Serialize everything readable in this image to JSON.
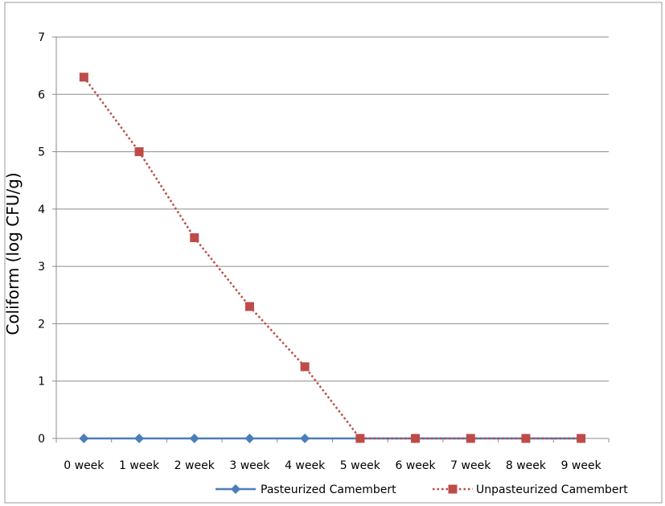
{
  "chart_data": {
    "type": "line",
    "title": "",
    "xlabel": "",
    "ylabel": "Coliform  (log CFU/g)",
    "categories": [
      "0 week",
      "1 week",
      "2 week",
      "3 week",
      "4 week",
      "5 week",
      "6 week",
      "7 week",
      "8 week",
      "9 week"
    ],
    "ylim": [
      0,
      7
    ],
    "yticks": [
      "0",
      "1",
      "2",
      "3",
      "4",
      "5",
      "6",
      "7"
    ],
    "grid": "horizontal",
    "legend_position": "bottom",
    "series": [
      {
        "name": "Pasteurized Camembert",
        "color": "#4a7ebb",
        "marker": "diamond",
        "line_style": "solid",
        "values": [
          0,
          0,
          0,
          0,
          0,
          0,
          0,
          0,
          0,
          0
        ]
      },
      {
        "name": "Unpasteurized Camembert",
        "color": "#be4b48",
        "marker": "square",
        "line_style": "dotted",
        "values": [
          6.3,
          5.0,
          3.5,
          2.3,
          1.25,
          0,
          0,
          0,
          0,
          0
        ]
      }
    ]
  }
}
